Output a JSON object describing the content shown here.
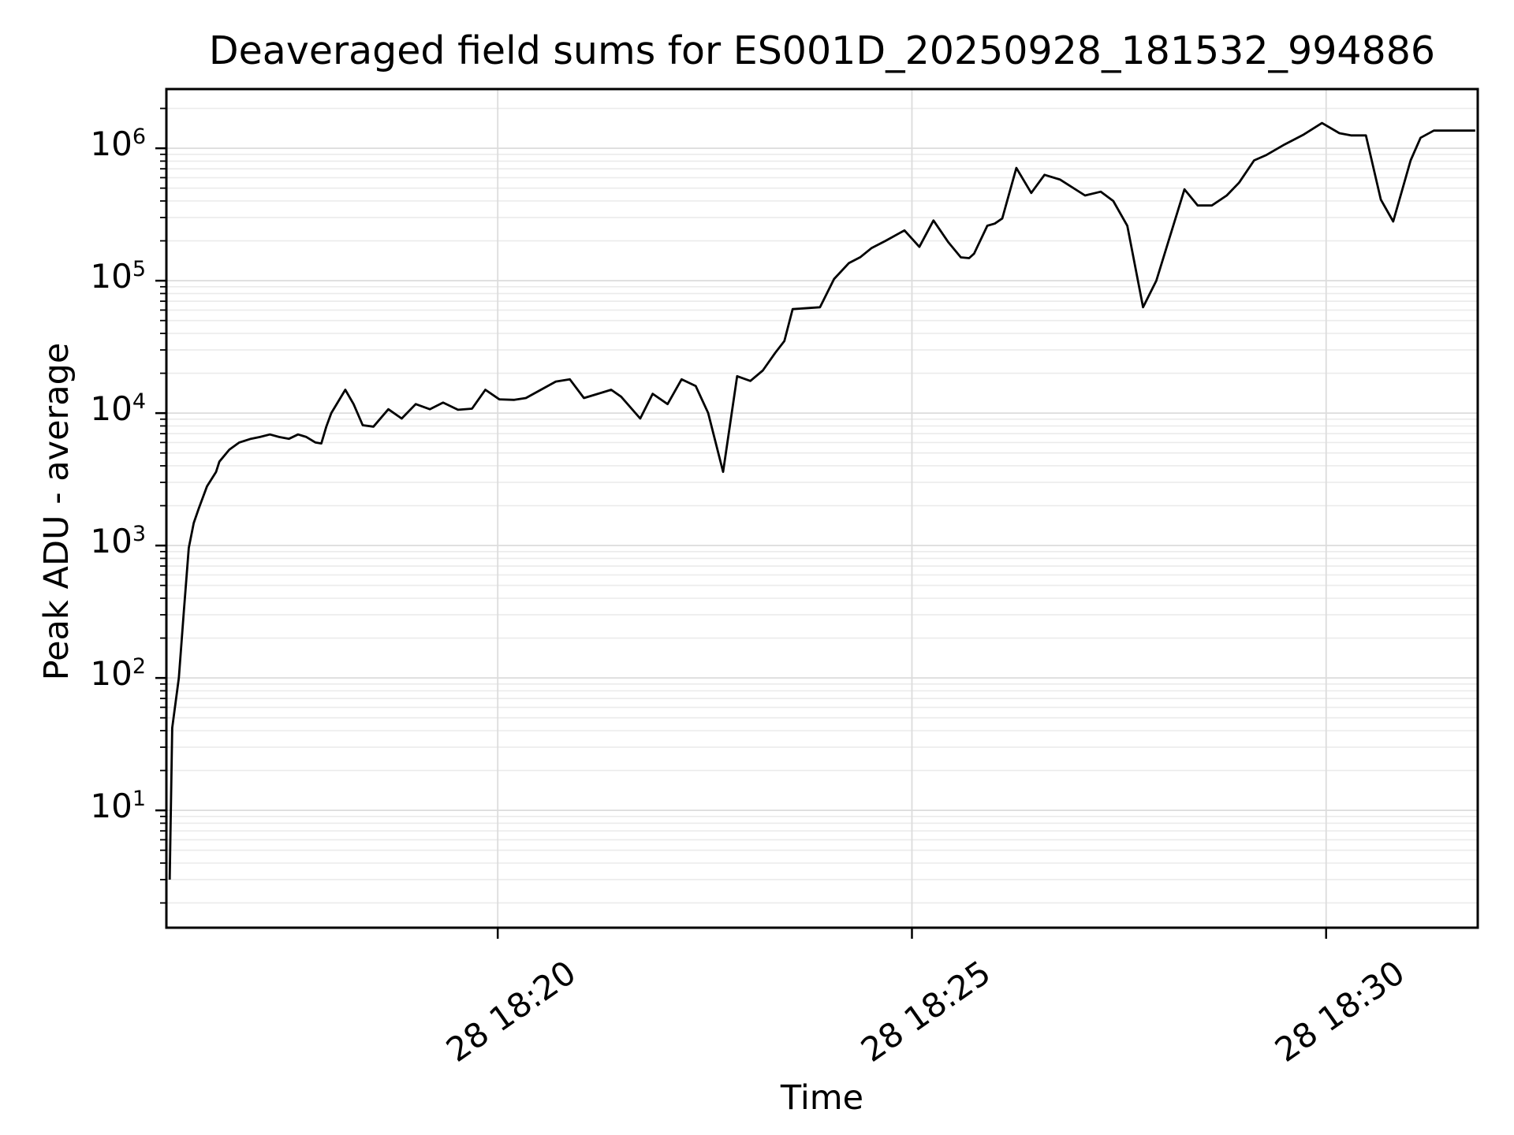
{
  "chart_data": {
    "type": "line",
    "title": "Deaveraged field sums for ES001D_20250928_181532_994886",
    "xlabel": "Time",
    "ylabel": "Peak ADU - average",
    "x_axis": {
      "unit": "minutes_after_18:00_day_28",
      "range_minutes": [
        16.0,
        31.83
      ],
      "ticks": [
        {
          "minute": 20,
          "label": "28 18:20"
        },
        {
          "minute": 25,
          "label": "28 18:25"
        },
        {
          "minute": 30,
          "label": "28 18:30"
        }
      ]
    },
    "y_axis": {
      "scale": "log",
      "range": [
        1.3,
        2800000
      ],
      "tick_exponents": [
        1,
        2,
        3,
        4,
        5,
        6
      ],
      "tick_labels": [
        "10^1",
        "10^2",
        "10^3",
        "10^4",
        "10^5",
        "10^6"
      ]
    },
    "grid": {
      "on": true,
      "major_color": "#dcdcdc",
      "minor_color": "#ebebeb"
    },
    "legend": {
      "shown": false
    },
    "series": [
      {
        "name": "Peak ADU - average",
        "color": "#000000",
        "points": [
          [
            16.04,
            3
          ],
          [
            16.07,
            42
          ],
          [
            16.15,
            100
          ],
          [
            16.21,
            316
          ],
          [
            16.27,
            960
          ],
          [
            16.33,
            1480
          ],
          [
            16.39,
            1900
          ],
          [
            16.49,
            2800
          ],
          [
            16.6,
            3600
          ],
          [
            16.64,
            4300
          ],
          [
            16.76,
            5300
          ],
          [
            16.88,
            6000
          ],
          [
            17.02,
            6400
          ],
          [
            17.13,
            6600
          ],
          [
            17.25,
            6900
          ],
          [
            17.36,
            6600
          ],
          [
            17.48,
            6400
          ],
          [
            17.59,
            6900
          ],
          [
            17.69,
            6600
          ],
          [
            17.8,
            6000
          ],
          [
            17.87,
            5900
          ],
          [
            17.93,
            7900
          ],
          [
            17.99,
            10000
          ],
          [
            18.16,
            15000
          ],
          [
            18.26,
            11700
          ],
          [
            18.37,
            8100
          ],
          [
            18.5,
            7900
          ],
          [
            18.68,
            10700
          ],
          [
            18.84,
            9100
          ],
          [
            19.01,
            11700
          ],
          [
            19.18,
            10700
          ],
          [
            19.34,
            12000
          ],
          [
            19.52,
            10600
          ],
          [
            19.69,
            10800
          ],
          [
            19.85,
            15000
          ],
          [
            20.02,
            12700
          ],
          [
            20.2,
            12600
          ],
          [
            20.34,
            13000
          ],
          [
            20.7,
            17300
          ],
          [
            20.87,
            18000
          ],
          [
            21.04,
            13000
          ],
          [
            21.21,
            14000
          ],
          [
            21.37,
            15000
          ],
          [
            21.49,
            13300
          ],
          [
            21.72,
            9100
          ],
          [
            21.87,
            14000
          ],
          [
            22.05,
            11700
          ],
          [
            22.22,
            18000
          ],
          [
            22.39,
            16000
          ],
          [
            22.54,
            10000
          ],
          [
            22.72,
            3600
          ],
          [
            22.89,
            19000
          ],
          [
            23.05,
            17500
          ],
          [
            23.2,
            21000
          ],
          [
            23.35,
            28500
          ],
          [
            23.46,
            35000
          ],
          [
            23.56,
            61000
          ],
          [
            23.89,
            63000
          ],
          [
            24.06,
            103000
          ],
          [
            24.24,
            136000
          ],
          [
            24.38,
            151000
          ],
          [
            24.51,
            176000
          ],
          [
            24.68,
            200000
          ],
          [
            24.91,
            240000
          ],
          [
            25.09,
            180000
          ],
          [
            25.26,
            285000
          ],
          [
            25.44,
            195000
          ],
          [
            25.59,
            150000
          ],
          [
            25.69,
            148000
          ],
          [
            25.75,
            160000
          ],
          [
            25.91,
            260000
          ],
          [
            26.0,
            270000
          ],
          [
            26.09,
            295000
          ],
          [
            26.26,
            710000
          ],
          [
            26.44,
            460000
          ],
          [
            26.6,
            630000
          ],
          [
            26.79,
            580000
          ],
          [
            27.09,
            440000
          ],
          [
            27.28,
            470000
          ],
          [
            27.43,
            400000
          ],
          [
            27.6,
            260000
          ],
          [
            27.79,
            63000
          ],
          [
            27.95,
            100000
          ],
          [
            28.29,
            490000
          ],
          [
            28.45,
            370000
          ],
          [
            28.62,
            370000
          ],
          [
            28.8,
            440000
          ],
          [
            28.95,
            550000
          ],
          [
            29.13,
            810000
          ],
          [
            29.28,
            890000
          ],
          [
            29.5,
            1070000
          ],
          [
            29.72,
            1260000
          ],
          [
            29.95,
            1550000
          ],
          [
            30.16,
            1300000
          ],
          [
            30.3,
            1250000
          ],
          [
            30.48,
            1250000
          ],
          [
            30.66,
            410000
          ],
          [
            30.81,
            280000
          ],
          [
            31.02,
            810000
          ],
          [
            31.14,
            1200000
          ],
          [
            31.3,
            1360000
          ],
          [
            31.8,
            1360000
          ]
        ]
      }
    ]
  }
}
